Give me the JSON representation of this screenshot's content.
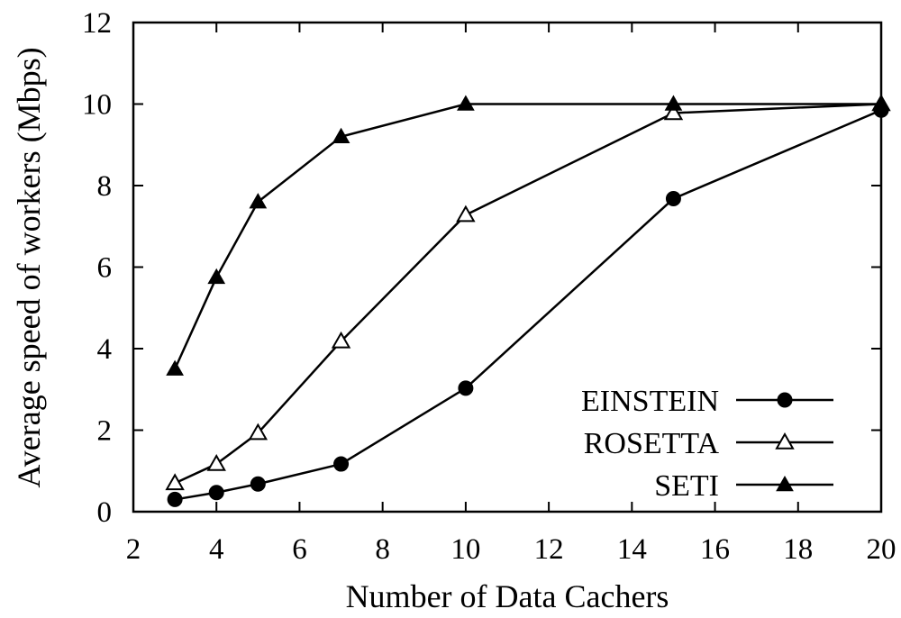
{
  "chart_data": {
    "type": "line",
    "title": "",
    "xlabel": "Number of Data Cachers",
    "ylabel": "Average speed of workers (Mbps)",
    "xlim": [
      2,
      20
    ],
    "ylim": [
      0,
      12
    ],
    "xticks": [
      2,
      4,
      6,
      8,
      10,
      12,
      14,
      16,
      18,
      20
    ],
    "yticks": [
      0,
      2,
      4,
      6,
      8,
      10,
      12
    ],
    "grid": false,
    "legend_position": "bottom-right",
    "x": [
      3,
      4,
      5,
      7,
      10,
      15,
      20
    ],
    "series": [
      {
        "name": "EINSTEIN",
        "marker": "filled-circle",
        "color": "#000000",
        "values": [
          0.3,
          0.47,
          0.68,
          1.17,
          3.03,
          7.68,
          9.85
        ]
      },
      {
        "name": "ROSETTA",
        "marker": "open-triangle",
        "color": "#000000",
        "values": [
          0.7,
          1.17,
          1.93,
          4.18,
          7.28,
          9.78,
          10.0
        ]
      },
      {
        "name": "SETI",
        "marker": "filled-triangle",
        "color": "#000000",
        "values": [
          3.5,
          5.75,
          7.6,
          9.2,
          10.0,
          10.0,
          10.0
        ]
      }
    ]
  }
}
